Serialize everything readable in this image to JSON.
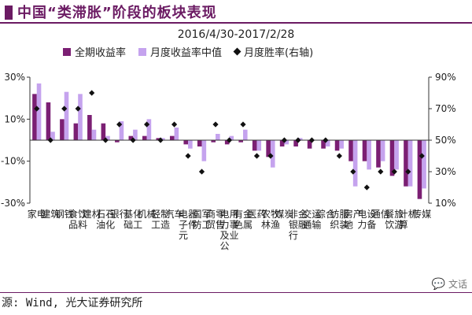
{
  "header": {
    "title": "中国“类滞胀”阶段的板块表现"
  },
  "chart_data": {
    "type": "bar",
    "title": "2016/4/30-2017/2/28",
    "categories": [
      "家电",
      "建筑",
      "钢铁",
      "食品饮料",
      "建材",
      "石油石化",
      "银行",
      "基础化工",
      "机械",
      "轻工制造",
      "汽车",
      "电子元器件",
      "国防军工",
      "商贸零售",
      "电力及公用事业",
      "有色金属",
      "医药",
      "农林牧渔",
      "煤炭",
      "非银行金融",
      "交通运输",
      "综合",
      "纺织服装",
      "房地产",
      "电力设备",
      "通信",
      "餐饮旅游",
      "计算机",
      "传媒"
    ],
    "series": [
      {
        "name": "全期收益率",
        "color": "#7b1f73",
        "axis": "left",
        "values": [
          22,
          18,
          10,
          8,
          12,
          8,
          -1,
          2,
          2,
          1,
          2,
          -2,
          -3,
          -1,
          -2,
          -1,
          -5,
          -8,
          -3,
          -3,
          -4,
          -4,
          -5,
          -10,
          -10,
          -13,
          -17,
          -22,
          -28
        ]
      },
      {
        "name": "月度收益率中值",
        "color": "#c5a3ee",
        "axis": "left",
        "values": [
          27,
          4,
          23,
          22,
          5,
          2,
          9,
          5,
          10,
          1,
          6,
          -4,
          -10,
          3,
          2,
          5,
          -5,
          -13,
          -2,
          1,
          0,
          -3,
          -4,
          -22,
          -14,
          -10,
          -14,
          -22,
          -23
        ]
      },
      {
        "name": "月度胜率(右轴)",
        "color": "#111111",
        "axis": "right",
        "marker": "diamond",
        "values": [
          70,
          50,
          70,
          70,
          80,
          50,
          60,
          50,
          60,
          50,
          60,
          40,
          30,
          60,
          50,
          60,
          40,
          40,
          50,
          50,
          50,
          50,
          40,
          30,
          20,
          30,
          30,
          30,
          40
        ]
      }
    ],
    "y_left": {
      "ticks": [
        30,
        10,
        -10,
        -30
      ],
      "tick_labels": [
        "30%",
        "10%",
        "-10%",
        "-30%"
      ],
      "lim": [
        -30,
        30
      ]
    },
    "y_right": {
      "ticks": [
        90,
        70,
        50,
        30,
        10
      ],
      "tick_labels": [
        "90%",
        "70%",
        "50%",
        "30%",
        "10%"
      ],
      "lim": [
        10,
        90
      ]
    },
    "legend_position": "top",
    "grid": false
  },
  "footer": {
    "source": "源: Wind, 光大证券研究所",
    "watermark": "文话"
  }
}
